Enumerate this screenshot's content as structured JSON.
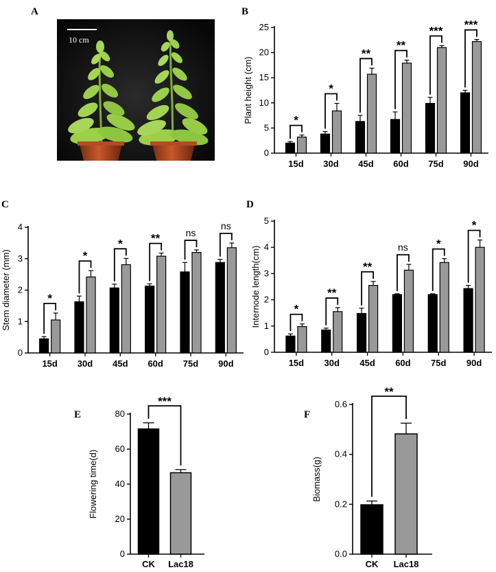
{
  "panel_labels": [
    "A",
    "B",
    "C",
    "D",
    "E",
    "F"
  ],
  "photo": {
    "scale_label": "10 cm"
  },
  "chart_data": [
    {
      "panel": "B",
      "type": "bar",
      "grid": false,
      "title": "",
      "xlabel": "",
      "ylabel": "Plant height (cm)",
      "ylim": [
        0,
        25
      ],
      "yticks": [
        0,
        5,
        10,
        15,
        20,
        25
      ],
      "categories": [
        "15d",
        "30d",
        "45d",
        "60d",
        "75d",
        "90d"
      ],
      "series": [
        {
          "values": [
            2.0,
            3.8,
            6.3,
            6.7,
            9.9,
            12.0
          ],
          "errors": [
            0.3,
            0.5,
            1.2,
            1.5,
            1.2,
            0.5
          ],
          "color": "#000000"
        },
        {
          "values": [
            3.2,
            8.4,
            15.7,
            17.9,
            21.0,
            22.2
          ],
          "errors": [
            0.4,
            1.5,
            1.2,
            0.6,
            0.4,
            0.4
          ],
          "color": "#999999"
        }
      ],
      "significance": [
        "*",
        "*",
        "**",
        "**",
        "***",
        "***"
      ]
    },
    {
      "panel": "C",
      "type": "bar",
      "grid": false,
      "title": "",
      "xlabel": "",
      "ylabel": "Stem diameter (mm)",
      "ylim": [
        0,
        4
      ],
      "yticks": [
        0,
        1,
        2,
        3,
        4
      ],
      "categories": [
        "15d",
        "30d",
        "45d",
        "60d",
        "75d",
        "90d"
      ],
      "series": [
        {
          "values": [
            0.45,
            1.63,
            2.07,
            2.13,
            2.58,
            2.88
          ],
          "errors": [
            0.07,
            0.18,
            0.12,
            0.07,
            0.3,
            0.1
          ],
          "color": "#000000"
        },
        {
          "values": [
            1.05,
            2.42,
            2.81,
            3.08,
            3.2,
            3.35
          ],
          "errors": [
            0.22,
            0.2,
            0.2,
            0.1,
            0.08,
            0.15
          ],
          "color": "#999999"
        }
      ],
      "significance": [
        "*",
        "*",
        "*",
        "**",
        "ns",
        "ns"
      ]
    },
    {
      "panel": "D",
      "type": "bar",
      "grid": false,
      "title": "",
      "xlabel": "",
      "ylabel": "Internode length(cm)",
      "ylim": [
        0,
        5
      ],
      "yticks": [
        0,
        1,
        2,
        3,
        4,
        5
      ],
      "categories": [
        "15d",
        "30d",
        "45d",
        "60d",
        "75d",
        "90d"
      ],
      "series": [
        {
          "values": [
            0.62,
            0.85,
            1.48,
            2.2,
            2.2,
            2.43
          ],
          "errors": [
            0.08,
            0.07,
            0.2,
            0.03,
            0.03,
            0.12
          ],
          "color": "#000000"
        },
        {
          "values": [
            0.98,
            1.55,
            2.55,
            3.13,
            3.42,
            4.0
          ],
          "errors": [
            0.1,
            0.15,
            0.15,
            0.22,
            0.15,
            0.28
          ],
          "color": "#999999"
        }
      ],
      "significance": [
        "*",
        "**",
        "**",
        "ns",
        "*",
        "*"
      ]
    },
    {
      "panel": "E",
      "type": "bar",
      "grid": false,
      "title": "",
      "xlabel": "",
      "ylabel": "Flowering time(d)",
      "ylim": [
        0,
        80
      ],
      "yticks": [
        0,
        20,
        40,
        60,
        80
      ],
      "categories": [
        "CK",
        "Lac18"
      ],
      "values": [
        71.5,
        46.5
      ],
      "errors": [
        3.5,
        1.8
      ],
      "colors": [
        "#000000",
        "#999999"
      ],
      "significance": [
        "***"
      ]
    },
    {
      "panel": "F",
      "type": "bar",
      "grid": false,
      "title": "",
      "xlabel": "",
      "ylabel": "Biomass(g)",
      "ylim": [
        0,
        0.6
      ],
      "yticks": [
        "0.0",
        "0.2",
        "0.4",
        "0.6"
      ],
      "categories": [
        "CK",
        "Lac18"
      ],
      "values": [
        0.198,
        0.482
      ],
      "errors": [
        0.015,
        0.043
      ],
      "colors": [
        "#000000",
        "#999999"
      ],
      "significance": [
        "**"
      ]
    }
  ]
}
